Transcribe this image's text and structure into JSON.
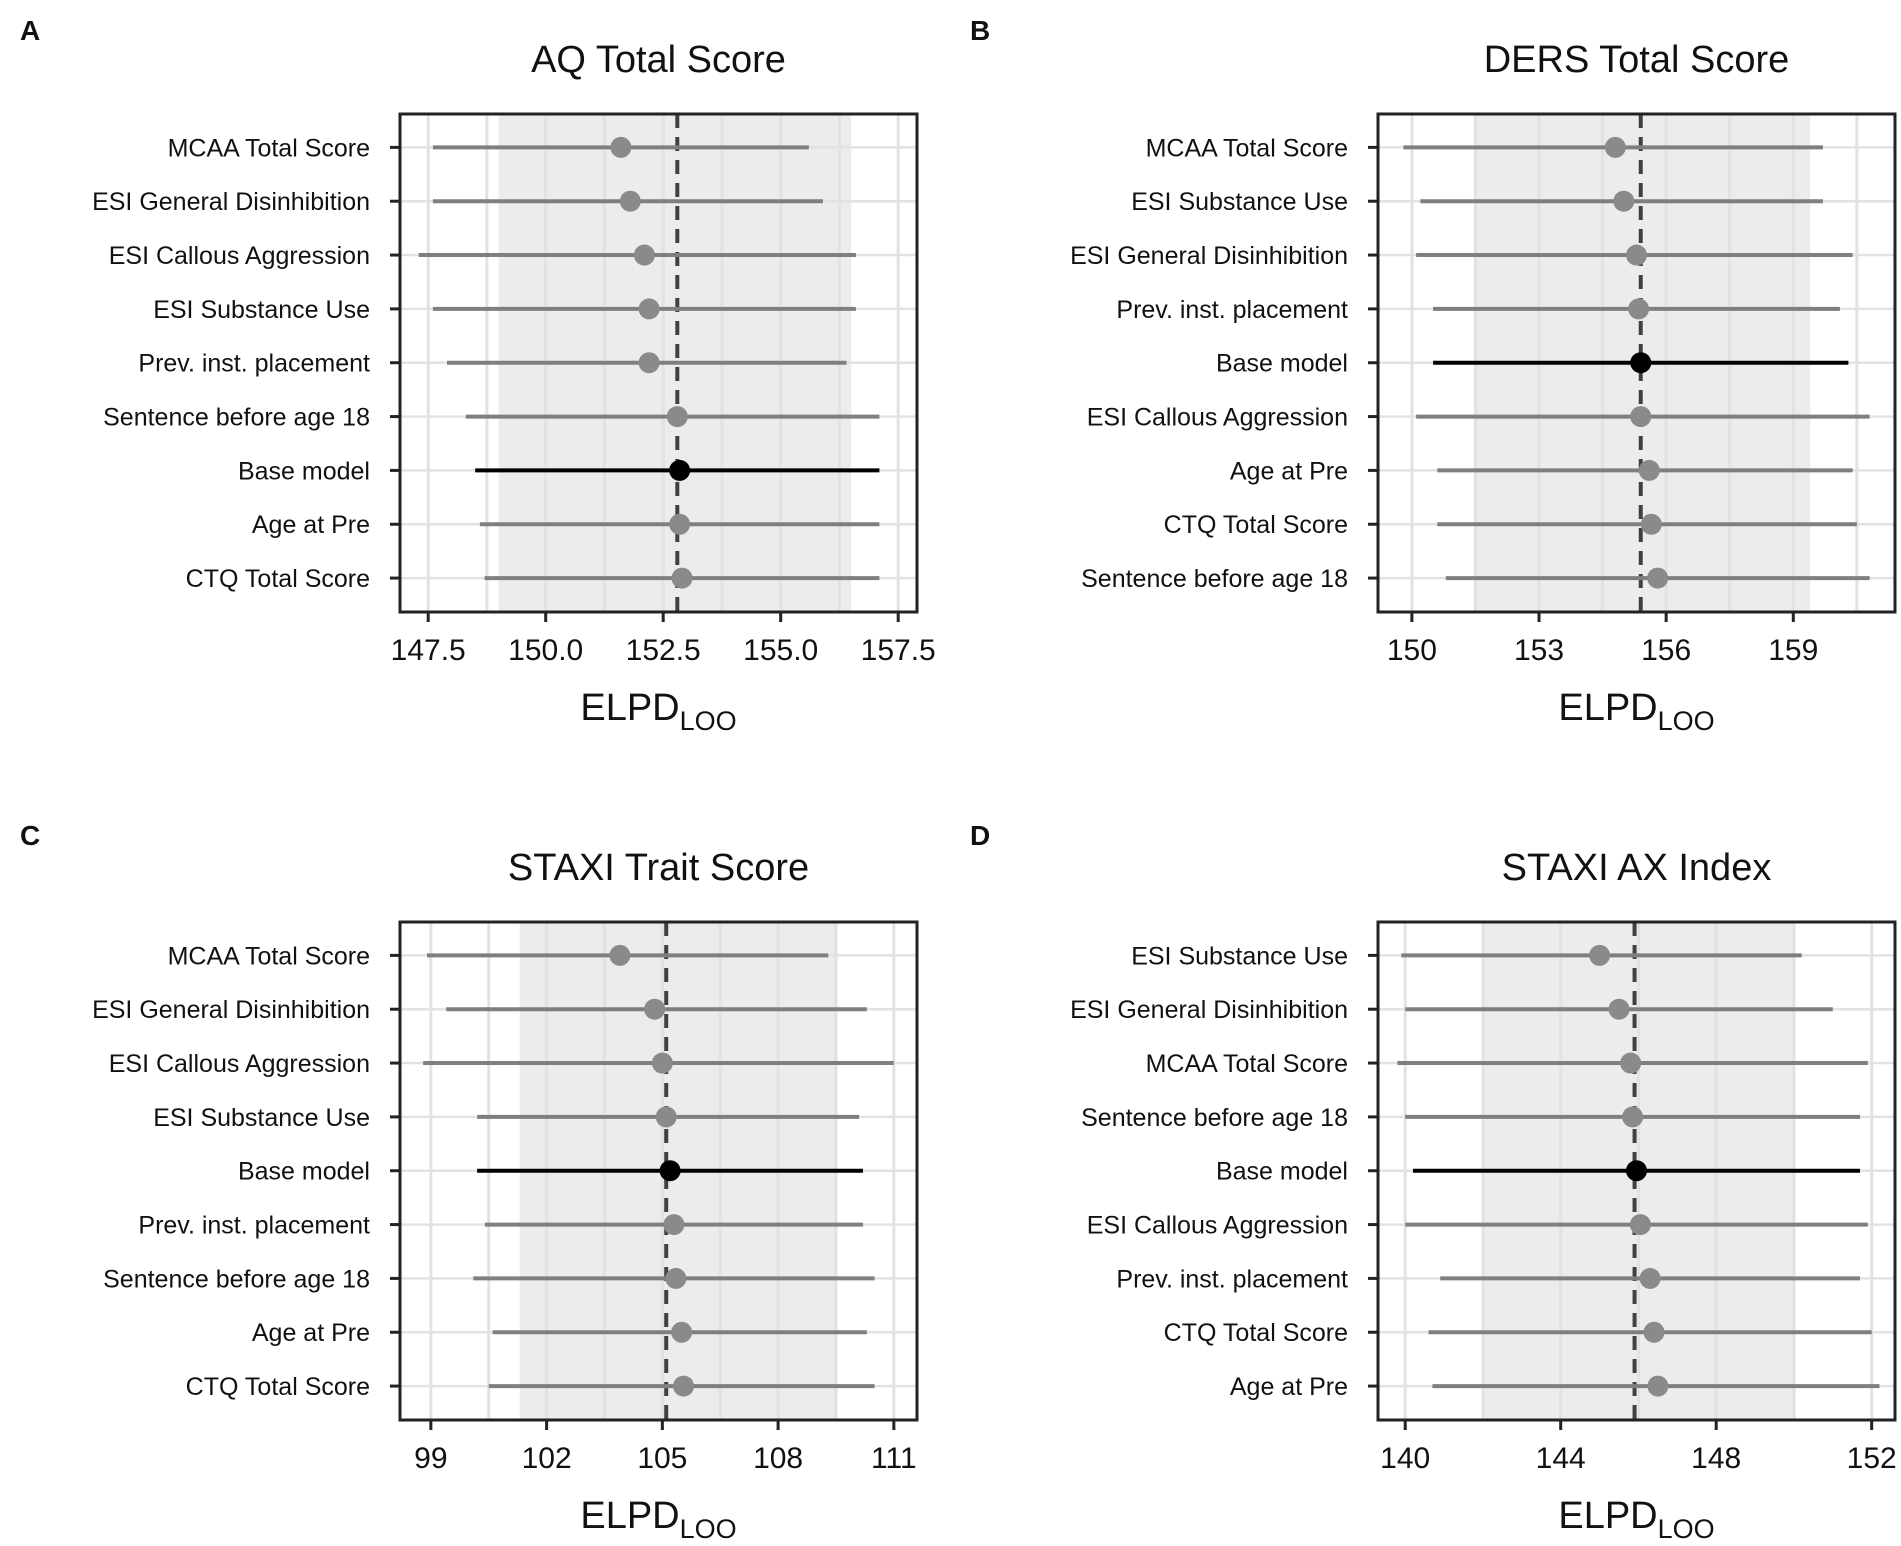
{
  "colors": {
    "band": "#ececec",
    "grid": "#e2e2e2",
    "interval": "#7f7f7f",
    "point": "#8a8a8a",
    "base": "#000000",
    "dashed": "#404040",
    "axis": "#222222",
    "text": "#111111"
  },
  "chart_data": [
    {
      "panel_label": "A",
      "type": "scatter",
      "subtype": "forest-plot",
      "title": "AQ Total Score",
      "xlabel_main": "ELPD",
      "xlabel_sub": "LOO",
      "xlim": [
        146.9,
        157.9
      ],
      "xticks": [
        147.5,
        150.0,
        152.5,
        155.0,
        157.5
      ],
      "xtick_labels": [
        "147.5",
        "150.0",
        "152.5",
        "155.0",
        "157.5"
      ],
      "band": [
        149.0,
        156.5
      ],
      "reference": 152.8,
      "rows": [
        {
          "label": "MCAA Total Score",
          "estimate": 151.6,
          "lower": 147.6,
          "upper": 155.6,
          "base": false
        },
        {
          "label": "ESI General Disinhibition",
          "estimate": 151.8,
          "lower": 147.6,
          "upper": 155.9,
          "base": false
        },
        {
          "label": "ESI Callous Aggression",
          "estimate": 152.1,
          "lower": 147.3,
          "upper": 156.6,
          "base": false
        },
        {
          "label": "ESI Substance Use",
          "estimate": 152.2,
          "lower": 147.6,
          "upper": 156.6,
          "base": false
        },
        {
          "label": "Prev. inst. placement",
          "estimate": 152.2,
          "lower": 147.9,
          "upper": 156.4,
          "base": false
        },
        {
          "label": "Sentence before age 18",
          "estimate": 152.8,
          "lower": 148.3,
          "upper": 157.1,
          "base": false
        },
        {
          "label": "Base model",
          "estimate": 152.85,
          "lower": 148.5,
          "upper": 157.1,
          "base": true
        },
        {
          "label": "Age at Pre",
          "estimate": 152.85,
          "lower": 148.6,
          "upper": 157.1,
          "base": false
        },
        {
          "label": "CTQ Total Score",
          "estimate": 152.9,
          "lower": 148.7,
          "upper": 157.1,
          "base": false
        }
      ]
    },
    {
      "panel_label": "B",
      "type": "scatter",
      "subtype": "forest-plot",
      "title": "DERS Total Score",
      "xlabel_main": "ELPD",
      "xlabel_sub": "LOO",
      "xlim": [
        149.2,
        161.4
      ],
      "xticks": [
        150,
        153,
        156,
        159
      ],
      "xtick_labels": [
        "150",
        "153",
        "156",
        "159"
      ],
      "band": [
        151.5,
        159.4
      ],
      "reference": 155.4,
      "rows": [
        {
          "label": "MCAA Total Score",
          "estimate": 154.8,
          "lower": 149.8,
          "upper": 159.7,
          "base": false
        },
        {
          "label": "ESI Substance Use",
          "estimate": 155.0,
          "lower": 150.2,
          "upper": 159.7,
          "base": false
        },
        {
          "label": "ESI General Disinhibition",
          "estimate": 155.3,
          "lower": 150.1,
          "upper": 160.4,
          "base": false
        },
        {
          "label": "Prev. inst. placement",
          "estimate": 155.35,
          "lower": 150.5,
          "upper": 160.1,
          "base": false
        },
        {
          "label": "Base model",
          "estimate": 155.4,
          "lower": 150.5,
          "upper": 160.3,
          "base": true
        },
        {
          "label": "ESI Callous Aggression",
          "estimate": 155.4,
          "lower": 150.1,
          "upper": 160.8,
          "base": false
        },
        {
          "label": "Age at Pre",
          "estimate": 155.6,
          "lower": 150.6,
          "upper": 160.4,
          "base": false
        },
        {
          "label": "CTQ Total Score",
          "estimate": 155.65,
          "lower": 150.6,
          "upper": 160.5,
          "base": false
        },
        {
          "label": "Sentence before age 18",
          "estimate": 155.8,
          "lower": 150.8,
          "upper": 160.8,
          "base": false
        }
      ]
    },
    {
      "panel_label": "C",
      "type": "scatter",
      "subtype": "forest-plot",
      "title": "STAXI Trait Score",
      "xlabel_main": "ELPD",
      "xlabel_sub": "LOO",
      "xlim": [
        98.2,
        111.6
      ],
      "xticks": [
        99,
        102,
        105,
        108,
        111
      ],
      "xtick_labels": [
        "99",
        "102",
        "105",
        "108",
        "111"
      ],
      "band": [
        101.3,
        109.5
      ],
      "reference": 105.1,
      "rows": [
        {
          "label": "MCAA Total Score",
          "estimate": 103.9,
          "lower": 98.9,
          "upper": 109.3,
          "base": false
        },
        {
          "label": "ESI General Disinhibition",
          "estimate": 104.8,
          "lower": 99.4,
          "upper": 110.3,
          "base": false
        },
        {
          "label": "ESI Callous Aggression",
          "estimate": 105.0,
          "lower": 98.8,
          "upper": 111.0,
          "base": false
        },
        {
          "label": "ESI Substance Use",
          "estimate": 105.1,
          "lower": 100.2,
          "upper": 110.1,
          "base": false
        },
        {
          "label": "Base model",
          "estimate": 105.2,
          "lower": 100.2,
          "upper": 110.2,
          "base": true
        },
        {
          "label": "Prev. inst. placement",
          "estimate": 105.3,
          "lower": 100.4,
          "upper": 110.2,
          "base": false
        },
        {
          "label": "Sentence before age 18",
          "estimate": 105.35,
          "lower": 100.1,
          "upper": 110.5,
          "base": false
        },
        {
          "label": "Age at Pre",
          "estimate": 105.5,
          "lower": 100.6,
          "upper": 110.3,
          "base": false
        },
        {
          "label": "CTQ Total Score",
          "estimate": 105.55,
          "lower": 100.5,
          "upper": 110.5,
          "base": false
        }
      ]
    },
    {
      "panel_label": "D",
      "type": "scatter",
      "subtype": "forest-plot",
      "title": "STAXI AX Index",
      "xlabel_main": "ELPD",
      "xlabel_sub": "LOO",
      "xlim": [
        139.3,
        152.6
      ],
      "xticks": [
        140,
        144,
        148,
        152
      ],
      "xtick_labels": [
        "140",
        "144",
        "148",
        "152"
      ],
      "band": [
        142.0,
        150.0
      ],
      "reference": 145.9,
      "rows": [
        {
          "label": "ESI Substance Use",
          "estimate": 145.0,
          "lower": 139.9,
          "upper": 150.2,
          "base": false
        },
        {
          "label": "ESI General Disinhibition",
          "estimate": 145.5,
          "lower": 140.0,
          "upper": 151.0,
          "base": false
        },
        {
          "label": "MCAA Total Score",
          "estimate": 145.8,
          "lower": 139.8,
          "upper": 151.9,
          "base": false
        },
        {
          "label": "Sentence before age 18",
          "estimate": 145.85,
          "lower": 140.0,
          "upper": 151.7,
          "base": false
        },
        {
          "label": "Base model",
          "estimate": 145.95,
          "lower": 140.2,
          "upper": 151.7,
          "base": true
        },
        {
          "label": "ESI Callous Aggression",
          "estimate": 146.05,
          "lower": 140.0,
          "upper": 151.9,
          "base": false
        },
        {
          "label": "Prev. inst. placement",
          "estimate": 146.3,
          "lower": 140.9,
          "upper": 151.7,
          "base": false
        },
        {
          "label": "CTQ Total Score",
          "estimate": 146.4,
          "lower": 140.6,
          "upper": 152.0,
          "base": false
        },
        {
          "label": "Age at Pre",
          "estimate": 146.5,
          "lower": 140.7,
          "upper": 152.2,
          "base": false
        }
      ]
    }
  ]
}
